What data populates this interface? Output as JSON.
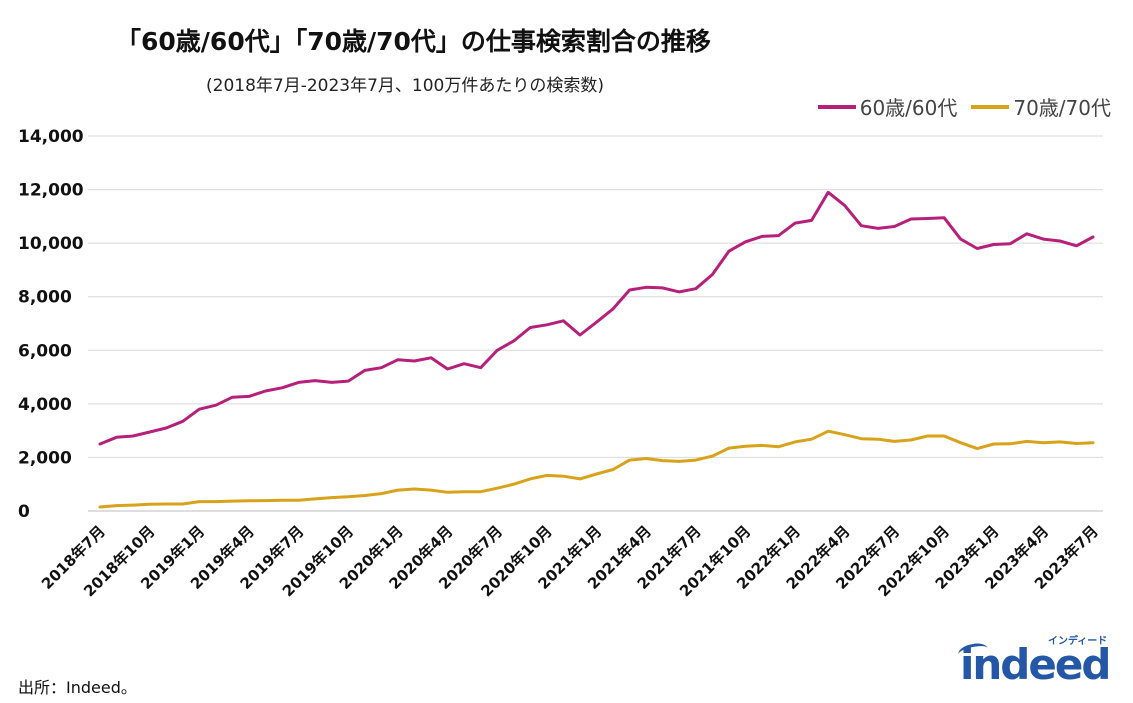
{
  "chart_data": {
    "type": "line",
    "title": "「60歳/60代」「70歳/70代」の仕事検索割合の推移",
    "subtitle": "(2018年7月-2023年7月、100万件あたりの検索数)",
    "xlabel": "",
    "ylabel": "",
    "ylim": [
      0,
      14000
    ],
    "yticks": [
      0,
      2000,
      4000,
      6000,
      8000,
      10000,
      12000,
      14000
    ],
    "ytick_labels": [
      "0",
      "2,000",
      "4,000",
      "6,000",
      "8,000",
      "10,000",
      "12,000",
      "14,000"
    ],
    "grid": true,
    "legend_position": "top-right",
    "x": [
      "2018年7月",
      "2018年8月",
      "2018年9月",
      "2018年10月",
      "2018年11月",
      "2018年12月",
      "2019年1月",
      "2019年2月",
      "2019年3月",
      "2019年4月",
      "2019年5月",
      "2019年6月",
      "2019年7月",
      "2019年8月",
      "2019年9月",
      "2019年10月",
      "2019年11月",
      "2019年12月",
      "2020年1月",
      "2020年2月",
      "2020年3月",
      "2020年4月",
      "2020年5月",
      "2020年6月",
      "2020年7月",
      "2020年8月",
      "2020年9月",
      "2020年10月",
      "2020年11月",
      "2020年12月",
      "2021年1月",
      "2021年2月",
      "2021年3月",
      "2021年4月",
      "2021年5月",
      "2021年6月",
      "2021年7月",
      "2021年8月",
      "2021年9月",
      "2021年10月",
      "2021年11月",
      "2021年12月",
      "2022年1月",
      "2022年2月",
      "2022年3月",
      "2022年4月",
      "2022年5月",
      "2022年6月",
      "2022年7月",
      "2022年8月",
      "2022年9月",
      "2022年10月",
      "2022年11月",
      "2022年12月",
      "2023年1月",
      "2023年2月",
      "2023年3月",
      "2023年4月",
      "2023年5月",
      "2023年6月",
      "2023年7月"
    ],
    "xtick_labels": [
      "2018年7月",
      "2018年10月",
      "2019年1月",
      "2019年4月",
      "2019年7月",
      "2019年10月",
      "2020年1月",
      "2020年4月",
      "2020年7月",
      "2020年10月",
      "2021年1月",
      "2021年4月",
      "2021年7月",
      "2021年10月",
      "2022年1月",
      "2022年4月",
      "2022年7月",
      "2022年10月",
      "2023年1月",
      "2023年4月",
      "2023年7月"
    ],
    "series": [
      {
        "name": "60歳/60代",
        "color": "#b5217a",
        "values": [
          2500,
          2750,
          2800,
          2950,
          3100,
          3350,
          3800,
          3950,
          4250,
          4280,
          4480,
          4600,
          4800,
          4870,
          4800,
          4850,
          5250,
          5350,
          5650,
          5600,
          5720,
          5300,
          5500,
          5350,
          6000,
          6350,
          6850,
          6950,
          7100,
          6570,
          7050,
          7550,
          8250,
          8350,
          8330,
          8180,
          8300,
          8830,
          9700,
          10050,
          10250,
          10280,
          10750,
          10850,
          11900,
          11400,
          10650,
          10550,
          10620,
          10900,
          10920,
          10950,
          10150,
          9800,
          9950,
          9980,
          10350,
          10150,
          10080,
          9900,
          10230
        ]
      },
      {
        "name": "70歳/70代",
        "color": "#d9a21b",
        "values": [
          150,
          200,
          220,
          250,
          260,
          260,
          350,
          350,
          370,
          380,
          390,
          400,
          400,
          450,
          500,
          530,
          580,
          650,
          780,
          820,
          780,
          700,
          720,
          720,
          850,
          1000,
          1200,
          1330,
          1300,
          1200,
          1380,
          1550,
          1900,
          1960,
          1880,
          1850,
          1900,
          2050,
          2350,
          2420,
          2450,
          2400,
          2580,
          2680,
          2980,
          2850,
          2700,
          2680,
          2600,
          2650,
          2800,
          2800,
          2550,
          2330,
          2500,
          2510,
          2600,
          2550,
          2580,
          2520,
          2550
        ]
      }
    ]
  },
  "source_label": "出所：Indeed。",
  "logo": {
    "word": "indeed",
    "kana": "インディード",
    "color": "#2557a7"
  }
}
